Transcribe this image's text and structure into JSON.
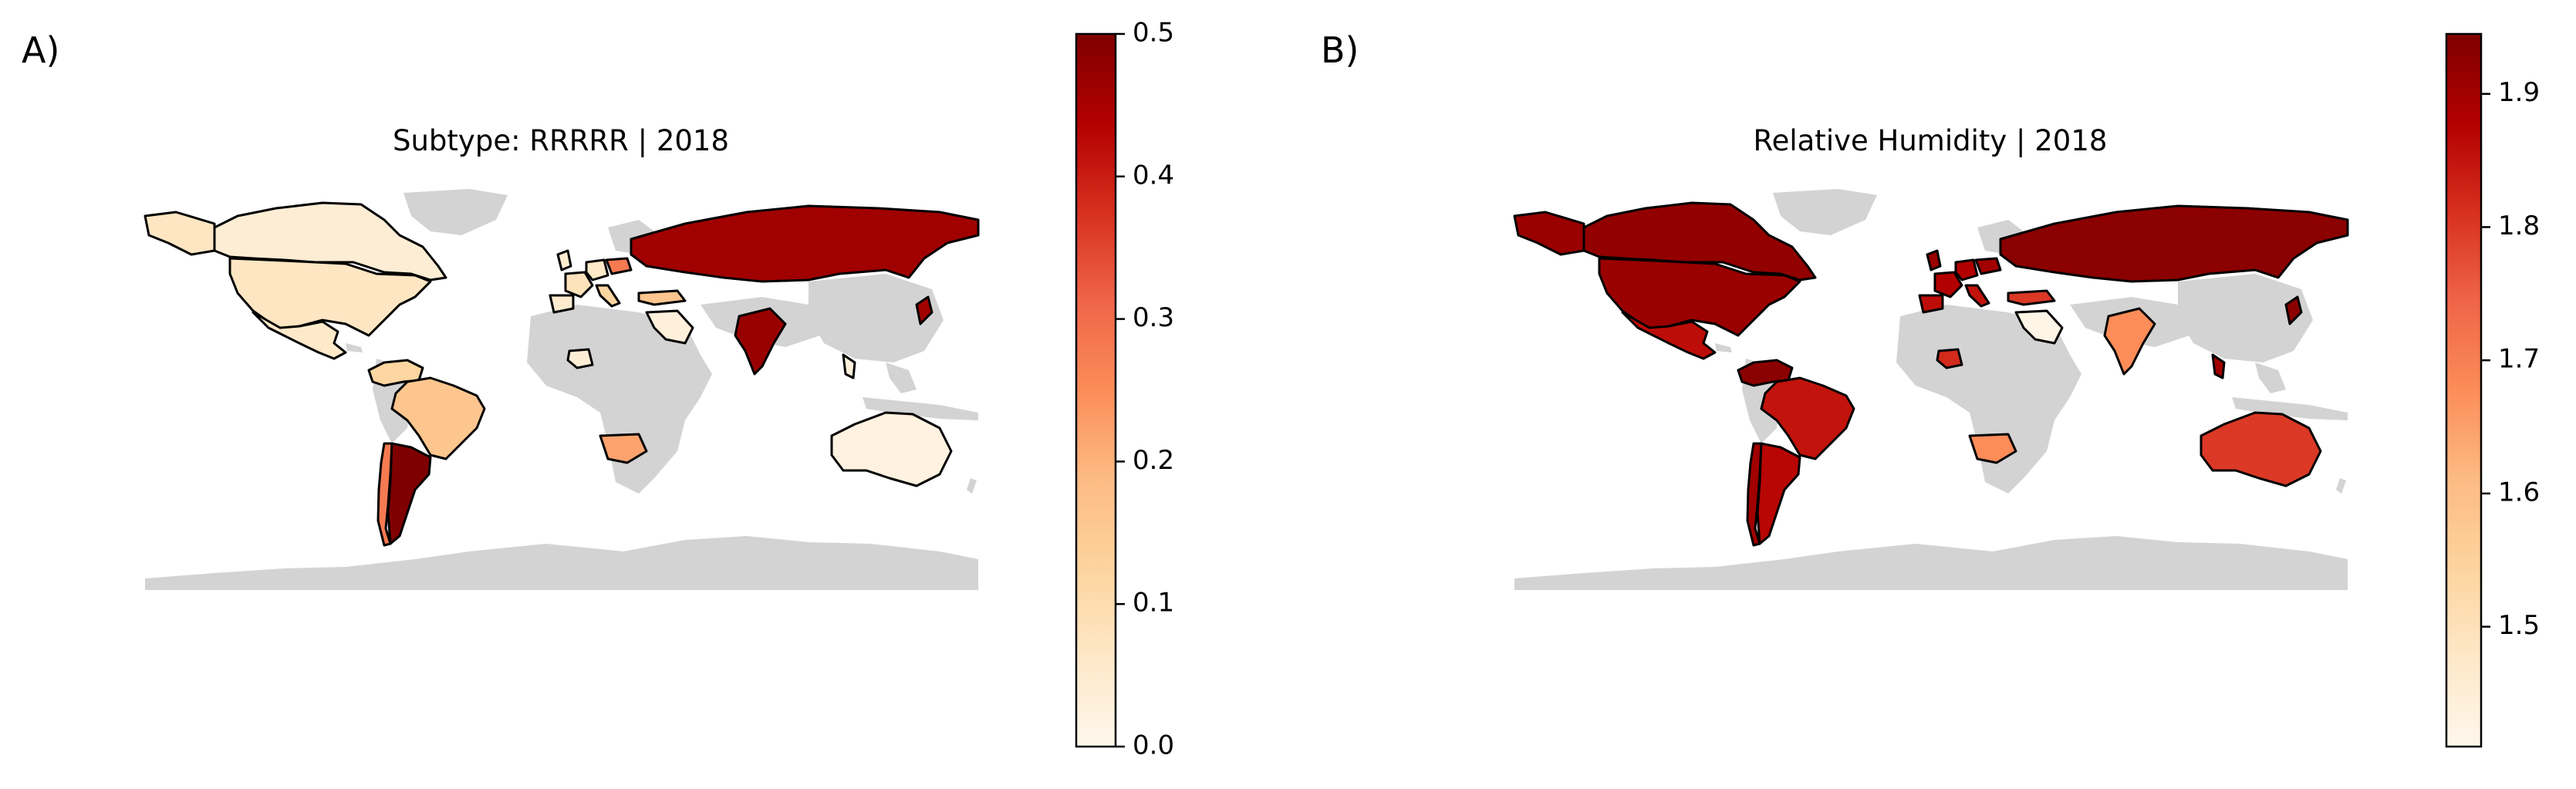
{
  "figure": {
    "panels": [
      {
        "letter": "A)",
        "title": "Subtype: RRRRR | 2018",
        "colorbar": {
          "ticks": [
            "0.0",
            "0.1",
            "0.2",
            "0.3",
            "0.4",
            "0.5"
          ],
          "tick_values": [
            0.0,
            0.1,
            0.2,
            0.3,
            0.4,
            0.5
          ],
          "range": [
            0.0,
            0.5
          ]
        },
        "countries": {
          "canada": 0.04,
          "usa": 0.07,
          "mexico": 0.06,
          "colombia_venezuela": 0.12,
          "brazil": 0.16,
          "argentina": 0.5,
          "chile": 0.28,
          "uk": 0.05,
          "france": 0.08,
          "spain": 0.05,
          "germany": 0.06,
          "italy": 0.12,
          "poland": 0.28,
          "turkey": 0.16,
          "russia": 0.46,
          "saudi_arabia": 0.03,
          "india": 0.47,
          "south_africa": 0.22,
          "nigeria": 0.04,
          "australia": 0.02,
          "malaysia_indonesia": 0.03
        }
      },
      {
        "letter": "B)",
        "title": "Relative Humidity | 2018",
        "colorbar": {
          "ticks": [
            "1.5",
            "1.6",
            "1.7",
            "1.8",
            "1.9"
          ],
          "tick_values": [
            1.5,
            1.6,
            1.7,
            1.8,
            1.9
          ],
          "range": [
            1.41,
            1.945
          ]
        },
        "countries": {
          "canada": 1.92,
          "usa": 1.91,
          "mexico": 1.86,
          "colombia_venezuela": 1.93,
          "brazil": 1.85,
          "argentina": 1.87,
          "chile": 1.9,
          "uk": 1.91,
          "france": 1.88,
          "spain": 1.86,
          "germany": 1.88,
          "italy": 1.85,
          "poland": 1.9,
          "turkey": 1.8,
          "russia": 1.93,
          "saudi_arabia": 1.42,
          "india": 1.68,
          "south_africa": 1.68,
          "nigeria": 1.82,
          "australia": 1.8,
          "malaysia_indonesia": 1.9
        }
      }
    ],
    "colormap": [
      "#fff7ec",
      "#fee8c8",
      "#fdd49e",
      "#fdbb84",
      "#fc8d59",
      "#ef6548",
      "#d7301f",
      "#b30000",
      "#7f0000"
    ],
    "land_color": "#d3d3d3",
    "border_color": "#000000"
  }
}
